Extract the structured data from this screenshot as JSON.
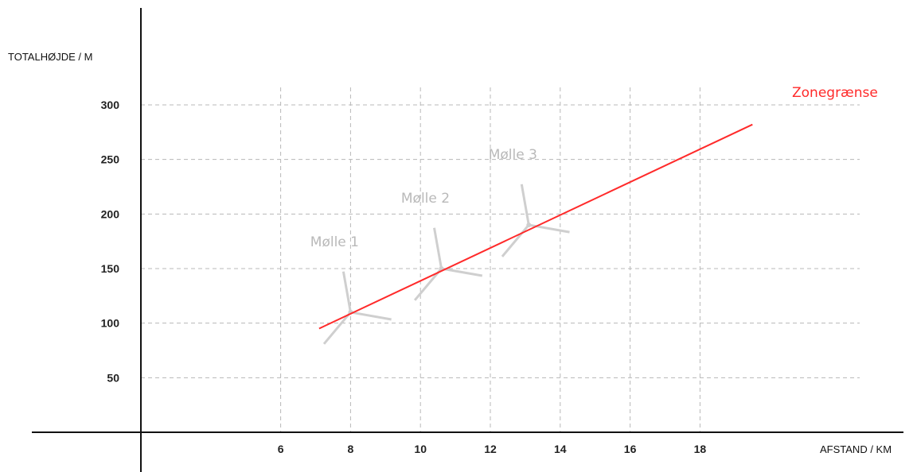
{
  "chart_data": {
    "type": "line",
    "ylabel": "TOTALHØJDE / M",
    "xlabel": "AFSTAND / KM",
    "x_ticks": [
      6,
      8,
      10,
      12,
      14,
      16,
      18
    ],
    "y_ticks": [
      50,
      100,
      150,
      200,
      250,
      300
    ],
    "xlim": [
      2,
      22
    ],
    "ylim": [
      0,
      300
    ],
    "grid": true,
    "series": [
      {
        "name": "Zonegrænse",
        "color": "#ff2a2a",
        "x": [
          7.1,
          19.5
        ],
        "y": [
          95,
          282
        ]
      }
    ],
    "turbines": [
      {
        "label": "Mølle 1",
        "x": 8.0,
        "y": 110
      },
      {
        "label": "Mølle 2",
        "x": 10.6,
        "y": 150
      },
      {
        "label": "Mølle 3",
        "x": 13.1,
        "y": 190
      }
    ]
  }
}
